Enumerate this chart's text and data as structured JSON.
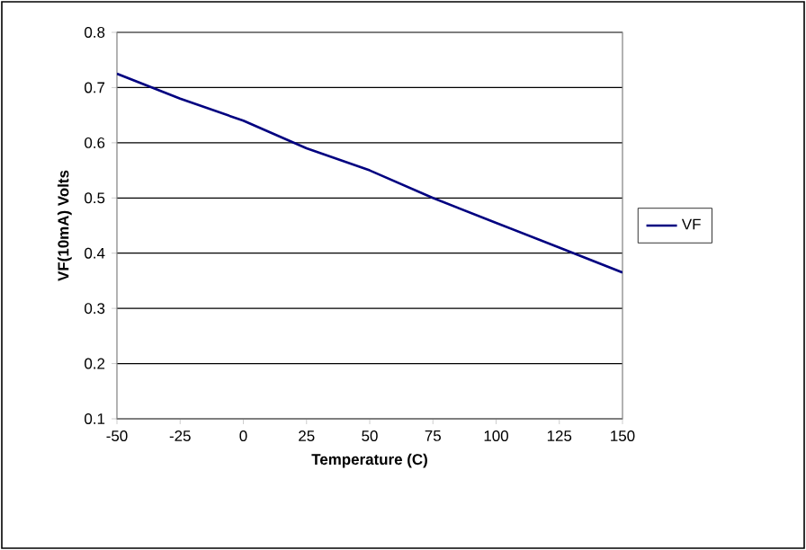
{
  "chart_data": {
    "type": "line",
    "xlabel": "Temperature (C)",
    "ylabel": "VF(10mA) Volts",
    "x": [
      -50,
      -25,
      0,
      25,
      50,
      75,
      100,
      125,
      150
    ],
    "series": [
      {
        "name": "VF",
        "color": "#000080",
        "values": [
          0.725,
          0.68,
          0.64,
          0.59,
          0.55,
          0.5,
          0.455,
          0.41,
          0.365
        ]
      }
    ],
    "xlim": [
      -50,
      150
    ],
    "xticks": [
      -50,
      -25,
      0,
      25,
      50,
      75,
      100,
      125,
      150
    ],
    "ylim": [
      0.1,
      0.8
    ],
    "yticks": [
      0.1,
      0.2,
      0.3,
      0.4,
      0.5,
      0.6,
      0.7,
      0.8
    ],
    "grid": "y",
    "legend": "right",
    "marker": "none",
    "line_style": "solid"
  }
}
